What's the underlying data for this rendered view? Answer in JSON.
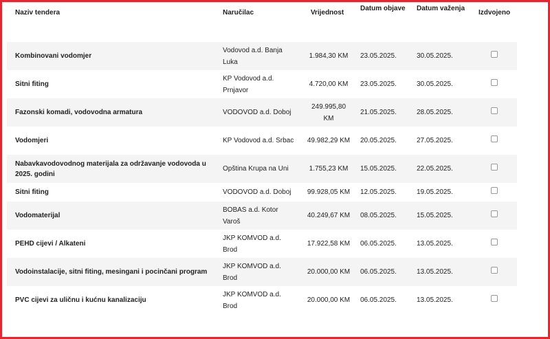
{
  "headers": {
    "name": "Naziv tendera",
    "buyer": "Naručilac",
    "value": "Vrijednost",
    "published": "Datum objave",
    "expires": "Datum važenja",
    "featured": "Izdvojeno"
  },
  "rows": [
    {
      "name": "Kombinovani vodomjer",
      "buyer": "Vodovod a.d. Banja Luka",
      "value": "1.984,30 KM",
      "published": "23.05.2025.",
      "expires": "30.05.2025.",
      "featured": false
    },
    {
      "name": "Sitni fiting",
      "buyer": "KP Vodovod a.d. Prnjavor",
      "value": "4.720,00 KM",
      "published": "23.05.2025.",
      "expires": "30.05.2025.",
      "featured": false
    },
    {
      "name": "Fazonski komadi, vodovodna armatura",
      "buyer": "VODOVOD a.d. Doboj",
      "value": "249.995,80 KM",
      "published": "21.05.2025.",
      "expires": "28.05.2025.",
      "featured": false
    },
    {
      "name": "Vodomjeri",
      "buyer": "KP Vodovod a.d. Srbac",
      "value": "49.982,29 KM",
      "published": "20.05.2025.",
      "expires": "27.05.2025.",
      "featured": false
    },
    {
      "name": "Nabavkavodovodnog materijala za održavanje vodovoda u 2025. godini",
      "buyer": "Opština Krupa na Uni",
      "value": "1.755,23 KM",
      "published": "15.05.2025.",
      "expires": "22.05.2025.",
      "featured": false
    },
    {
      "name": "Sitni fiting",
      "buyer": "VODOVOD a.d. Doboj",
      "value": "99.928,05 KM",
      "published": "12.05.2025.",
      "expires": "19.05.2025.",
      "featured": false
    },
    {
      "name": "Vodomaterijal",
      "buyer": "BOBAS a.d. Kotor Varoš",
      "value": "40.249,67 KM",
      "published": "08.05.2025.",
      "expires": "15.05.2025.",
      "featured": false
    },
    {
      "name": "PEHD cijevi / Alkateni",
      "buyer": "JKP KOMVOD a.d. Brod",
      "value": "17.922,58 KM",
      "published": "06.05.2025.",
      "expires": "13.05.2025.",
      "featured": false
    },
    {
      "name": "Vodoinstalacije, sitni fiting, mesingani i pocinčani program",
      "buyer": "JKP KOMVOD a.d. Brod",
      "value": "20.000,00 KM",
      "published": "06.05.2025.",
      "expires": "13.05.2025.",
      "featured": false
    },
    {
      "name": "PVC cijevi za uličnu i kućnu kanalizaciju",
      "buyer": "JKP KOMVOD a.d. Brod",
      "value": "20.000,00 KM",
      "published": "06.05.2025.",
      "expires": "13.05.2025.",
      "featured": false
    }
  ]
}
